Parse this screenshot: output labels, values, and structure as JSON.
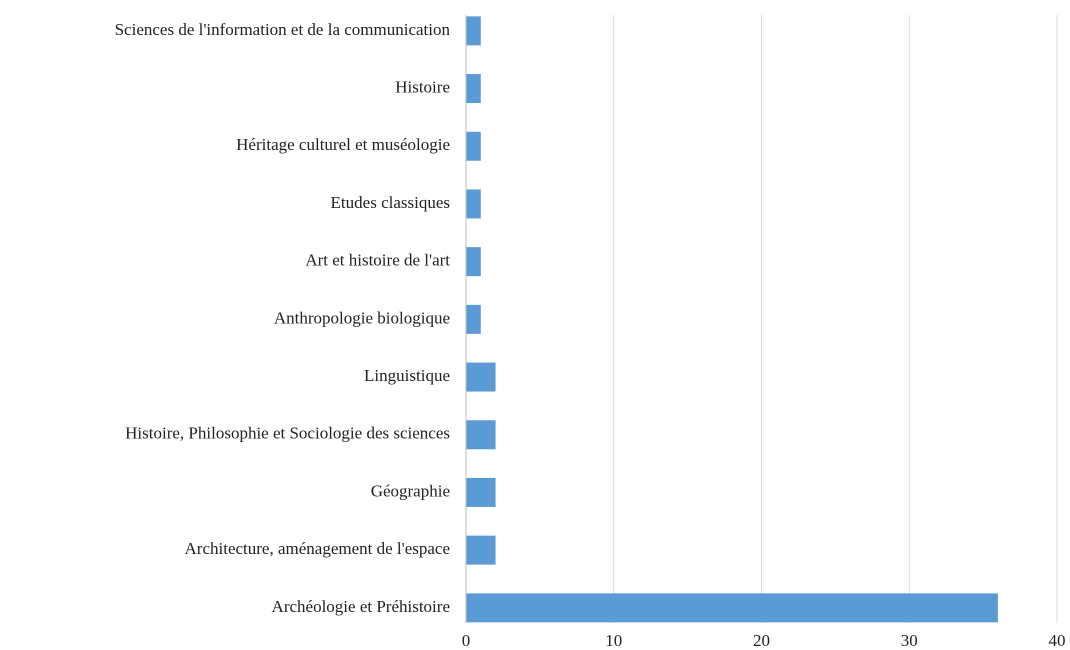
{
  "chart_data": {
    "type": "barh",
    "categories": [
      "Sciences de l'information et de la communication",
      "Histoire",
      "Héritage culturel et muséologie",
      "Etudes classiques",
      "Art et histoire de l'art",
      "Anthropologie biologique",
      "Linguistique",
      "Histoire, Philosophie et Sociologie des sciences",
      "Géographie",
      "Architecture, aménagement de l'espace",
      "Archéologie et Préhistoire"
    ],
    "values": [
      1,
      1,
      1,
      1,
      1,
      1,
      2,
      2,
      2,
      2,
      36
    ],
    "color": "#5b9bd5",
    "xlim": [
      0,
      40
    ],
    "xticks": [
      0,
      10,
      20,
      30,
      40
    ],
    "grid": true
  }
}
